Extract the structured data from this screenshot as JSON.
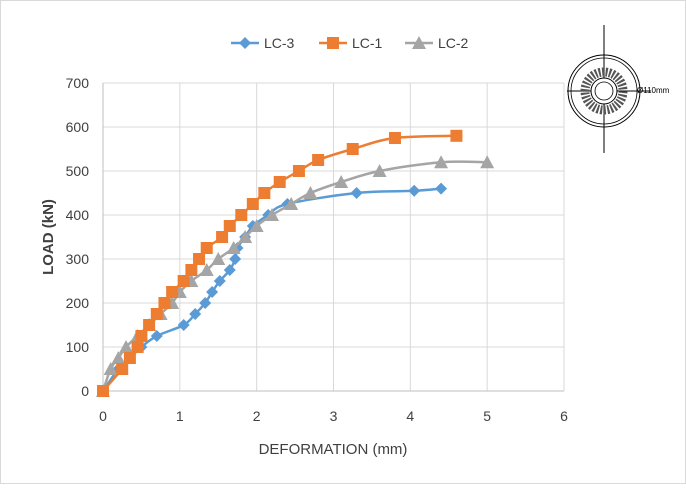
{
  "chart_data": {
    "type": "line",
    "title": "",
    "xlabel": "DEFORMATION (mm)",
    "ylabel": "LOAD (kN)",
    "xlim": [
      0,
      6
    ],
    "ylim": [
      0,
      700
    ],
    "x_ticks": [
      "0",
      "1",
      "2",
      "3",
      "4",
      "5",
      "6"
    ],
    "y_ticks": [
      "0",
      "100",
      "200",
      "300",
      "400",
      "500",
      "600",
      "700"
    ],
    "grid": true,
    "legend_position": "top",
    "series": [
      {
        "name": "LC-3",
        "color": "#5b9bd5",
        "marker": "diamond",
        "points": [
          [
            0,
            0
          ],
          [
            0.2,
            50
          ],
          [
            0.35,
            75
          ],
          [
            0.5,
            100
          ],
          [
            0.7,
            125
          ],
          [
            1.05,
            150
          ],
          [
            1.2,
            175
          ],
          [
            1.33,
            200
          ],
          [
            1.42,
            225
          ],
          [
            1.52,
            250
          ],
          [
            1.65,
            275
          ],
          [
            1.72,
            300
          ],
          [
            1.75,
            325
          ],
          [
            1.85,
            350
          ],
          [
            1.95,
            375
          ],
          [
            2.15,
            400
          ],
          [
            2.4,
            425
          ],
          [
            3.3,
            450
          ],
          [
            4.05,
            455
          ],
          [
            4.4,
            460
          ]
        ]
      },
      {
        "name": "LC-1",
        "color": "#ed7d31",
        "marker": "square",
        "points": [
          [
            0,
            0
          ],
          [
            0.25,
            50
          ],
          [
            0.35,
            75
          ],
          [
            0.45,
            100
          ],
          [
            0.5,
            125
          ],
          [
            0.6,
            150
          ],
          [
            0.7,
            175
          ],
          [
            0.8,
            200
          ],
          [
            0.9,
            225
          ],
          [
            1.05,
            250
          ],
          [
            1.15,
            275
          ],
          [
            1.25,
            300
          ],
          [
            1.35,
            325
          ],
          [
            1.55,
            350
          ],
          [
            1.65,
            375
          ],
          [
            1.8,
            400
          ],
          [
            1.95,
            425
          ],
          [
            2.1,
            450
          ],
          [
            2.3,
            475
          ],
          [
            2.55,
            500
          ],
          [
            2.8,
            525
          ],
          [
            3.25,
            550
          ],
          [
            3.8,
            575
          ],
          [
            4.6,
            580
          ]
        ]
      },
      {
        "name": "LC-2",
        "color": "#a5a5a5",
        "marker": "triangle",
        "points": [
          [
            0,
            0
          ],
          [
            0.1,
            50
          ],
          [
            0.2,
            75
          ],
          [
            0.3,
            100
          ],
          [
            0.45,
            125
          ],
          [
            0.6,
            150
          ],
          [
            0.75,
            175
          ],
          [
            0.9,
            200
          ],
          [
            1.0,
            225
          ],
          [
            1.15,
            250
          ],
          [
            1.35,
            275
          ],
          [
            1.5,
            300
          ],
          [
            1.7,
            325
          ],
          [
            1.85,
            350
          ],
          [
            2.0,
            375
          ],
          [
            2.2,
            400
          ],
          [
            2.45,
            425
          ],
          [
            2.7,
            450
          ],
          [
            3.1,
            475
          ],
          [
            3.6,
            500
          ],
          [
            4.4,
            520
          ],
          [
            5.0,
            520
          ]
        ]
      }
    ]
  },
  "inset": {
    "dimension_label": "Ø110mm",
    "color": "#000000"
  }
}
